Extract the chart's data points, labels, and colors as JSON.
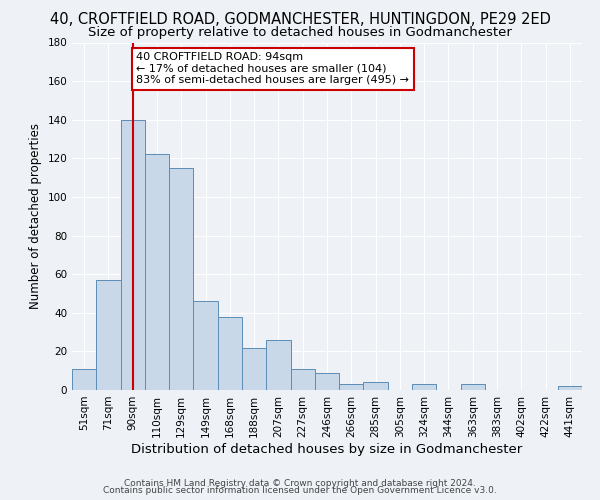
{
  "title": "40, CROFTFIELD ROAD, GODMANCHESTER, HUNTINGDON, PE29 2ED",
  "subtitle": "Size of property relative to detached houses in Godmanchester",
  "xlabel": "Distribution of detached houses by size in Godmanchester",
  "ylabel": "Number of detached properties",
  "bar_labels": [
    "51sqm",
    "71sqm",
    "90sqm",
    "110sqm",
    "129sqm",
    "149sqm",
    "168sqm",
    "188sqm",
    "207sqm",
    "227sqm",
    "246sqm",
    "266sqm",
    "285sqm",
    "305sqm",
    "324sqm",
    "344sqm",
    "363sqm",
    "383sqm",
    "402sqm",
    "422sqm",
    "441sqm"
  ],
  "bar_heights": [
    11,
    57,
    140,
    122,
    115,
    46,
    38,
    22,
    26,
    11,
    9,
    3,
    4,
    0,
    3,
    0,
    3,
    0,
    0,
    0,
    2
  ],
  "bar_color": "#c8d8e8",
  "bar_edge_color": "#5b8db8",
  "vline_x": 2,
  "vline_color": "#cc0000",
  "annotation_text": "40 CROFTFIELD ROAD: 94sqm\n← 17% of detached houses are smaller (104)\n83% of semi-detached houses are larger (495) →",
  "annotation_box_edge": "#cc0000",
  "annotation_box_face": "#ffffff",
  "ylim": [
    0,
    180
  ],
  "yticks": [
    0,
    20,
    40,
    60,
    80,
    100,
    120,
    140,
    160,
    180
  ],
  "footer_line1": "Contains HM Land Registry data © Crown copyright and database right 2024.",
  "footer_line2": "Contains public sector information licensed under the Open Government Licence v3.0.",
  "background_color": "#eef2f7",
  "grid_color": "#ffffff",
  "title_fontsize": 10.5,
  "subtitle_fontsize": 9.5,
  "xlabel_fontsize": 9.5,
  "ylabel_fontsize": 8.5,
  "tick_fontsize": 7.5,
  "footer_fontsize": 6.5,
  "annotation_fontsize": 8
}
